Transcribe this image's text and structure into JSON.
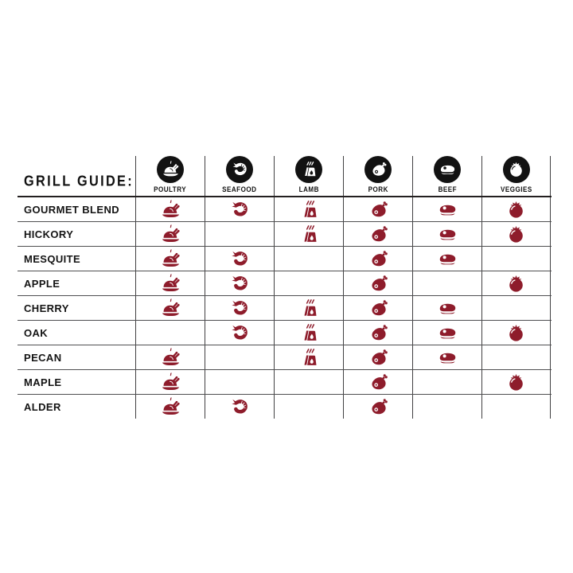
{
  "title": "GRILL GUIDE:",
  "columns": [
    {
      "id": "poultry",
      "label": "POULTRY",
      "icon": "turkey-icon"
    },
    {
      "id": "seafood",
      "label": "SEAFOOD",
      "icon": "shrimp-icon"
    },
    {
      "id": "lamb",
      "label": "LAMB",
      "icon": "lamb-ribs-icon"
    },
    {
      "id": "pork",
      "label": "PORK",
      "icon": "ham-icon"
    },
    {
      "id": "beef",
      "label": "BEEF",
      "icon": "steak-icon"
    },
    {
      "id": "veggies",
      "label": "VEGGIES",
      "icon": "tomato-icon"
    }
  ],
  "rows": [
    {
      "label": "GOURMET BLEND",
      "cells": [
        1,
        1,
        1,
        1,
        1,
        1
      ]
    },
    {
      "label": "HICKORY",
      "cells": [
        1,
        0,
        1,
        1,
        1,
        1
      ]
    },
    {
      "label": "MESQUITE",
      "cells": [
        1,
        1,
        0,
        1,
        1,
        0
      ]
    },
    {
      "label": "APPLE",
      "cells": [
        1,
        1,
        0,
        1,
        0,
        1
      ]
    },
    {
      "label": "CHERRY",
      "cells": [
        1,
        1,
        1,
        1,
        1,
        0
      ]
    },
    {
      "label": "OAK",
      "cells": [
        0,
        1,
        1,
        1,
        1,
        1
      ]
    },
    {
      "label": "PECAN",
      "cells": [
        1,
        0,
        1,
        1,
        1,
        0
      ]
    },
    {
      "label": "MAPLE",
      "cells": [
        1,
        0,
        0,
        1,
        0,
        1
      ]
    },
    {
      "label": "ALDER",
      "cells": [
        1,
        1,
        0,
        1,
        0,
        0
      ]
    }
  ],
  "colors": {
    "accent": "#8E1C2B",
    "header_circle": "#121212",
    "grid_line": "#414042",
    "text": "#111111",
    "background": "#ffffff"
  },
  "chart_data": {
    "type": "table",
    "title": "GRILL GUIDE:",
    "columns": [
      "POULTRY",
      "SEAFOOD",
      "LAMB",
      "PORK",
      "BEEF",
      "VEGGIES"
    ],
    "rows": [
      "GOURMET BLEND",
      "HICKORY",
      "MESQUITE",
      "APPLE",
      "CHERRY",
      "OAK",
      "PECAN",
      "MAPLE",
      "ALDER"
    ],
    "matrix": [
      [
        1,
        1,
        1,
        1,
        1,
        1
      ],
      [
        1,
        0,
        1,
        1,
        1,
        1
      ],
      [
        1,
        1,
        0,
        1,
        1,
        0
      ],
      [
        1,
        1,
        0,
        1,
        0,
        1
      ],
      [
        1,
        1,
        1,
        1,
        1,
        0
      ],
      [
        0,
        1,
        1,
        1,
        1,
        1
      ],
      [
        1,
        0,
        1,
        1,
        1,
        0
      ],
      [
        1,
        0,
        0,
        1,
        0,
        1
      ],
      [
        1,
        1,
        0,
        1,
        0,
        0
      ]
    ]
  }
}
